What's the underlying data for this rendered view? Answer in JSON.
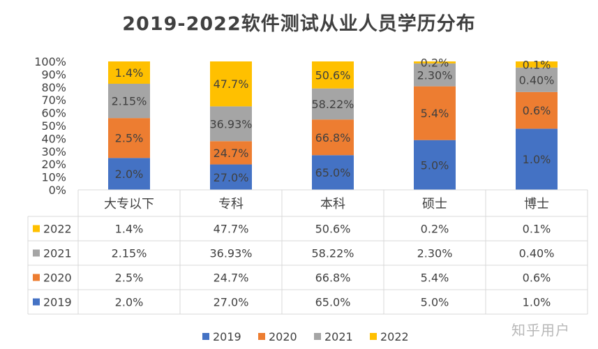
{
  "chart_data": {
    "type": "bar",
    "stacked": "percent",
    "title": "2019-2022软件测试从业人员学历分布",
    "categories": [
      "大专以下",
      "专科",
      "本科",
      "硕士",
      "博士"
    ],
    "y_ticks": [
      "0%",
      "10%",
      "20%",
      "30%",
      "40%",
      "50%",
      "60%",
      "70%",
      "80%",
      "90%",
      "100%"
    ],
    "ylim": [
      0,
      100
    ],
    "grid": false,
    "legend_position": "bottom",
    "data_table": true,
    "series": [
      {
        "name": "2019",
        "color": "#4472C4",
        "values": [
          2.0,
          27.0,
          65.0,
          5.0,
          1.0
        ],
        "labels": [
          "2.0%",
          "27.0%",
          "65.0%",
          "5.0%",
          "1.0%"
        ]
      },
      {
        "name": "2020",
        "color": "#ED7D31",
        "values": [
          2.5,
          24.7,
          66.8,
          5.4,
          0.6
        ],
        "labels": [
          "2.5%",
          "24.7%",
          "66.8%",
          "5.4%",
          "0.6%"
        ]
      },
      {
        "name": "2021",
        "color": "#A5A5A5",
        "values": [
          2.15,
          36.93,
          58.22,
          2.3,
          0.4
        ],
        "labels": [
          "2.15%",
          "36.93%",
          "58.22%",
          "2.30%",
          "0.40%"
        ]
      },
      {
        "name": "2022",
        "color": "#FFC000",
        "values": [
          1.4,
          47.7,
          50.6,
          0.2,
          0.1
        ],
        "labels": [
          "1.4%",
          "47.7%",
          "50.6%",
          "0.2%",
          "0.1%"
        ]
      }
    ]
  },
  "watermark": "知乎用户"
}
